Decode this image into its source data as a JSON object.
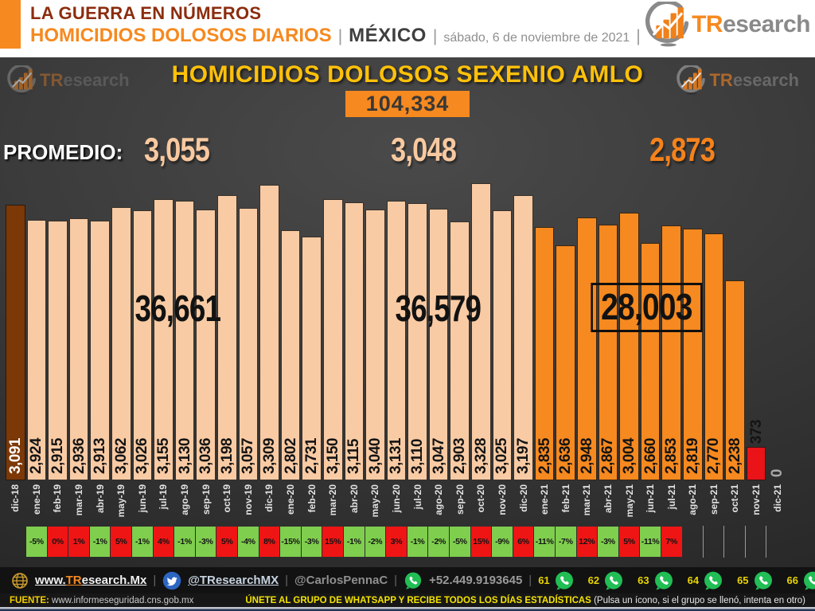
{
  "header": {
    "kicker": "LA GUERRA EN NÚMEROS",
    "subtitle": "HOMICIDIOS DOLOSOS DIARIOS",
    "sep": "|",
    "region": "MÉXICO",
    "date": "sábado, 6 de noviembre de 2021",
    "brand": {
      "tr": "TR",
      "rest": "esearch"
    }
  },
  "chart_data": {
    "type": "bar",
    "title": "HOMICIDIOS DOLOSOS SEXENIO AMLO",
    "grand_total": "104,334",
    "promedio_label": "PROMEDIO:",
    "averages": [
      "3,055",
      "3,048",
      "2,873"
    ],
    "period_totals": [
      "36,661",
      "36,579",
      "28,003"
    ],
    "categories": [
      "dic-18",
      "ene-19",
      "feb-19",
      "mar-19",
      "abr-19",
      "may-19",
      "jun-19",
      "jul-19",
      "ago-19",
      "sep-19",
      "oct-19",
      "nov-19",
      "dic-19",
      "ene-20",
      "feb-20",
      "mar-20",
      "abr-20",
      "may-20",
      "jun-20",
      "jul-20",
      "ago-20",
      "sep-20",
      "oct-20",
      "nov-20",
      "dic-20",
      "ene-21",
      "feb-21",
      "mar-21",
      "abr-21",
      "may-21",
      "jun-21",
      "jul-21",
      "ago-21",
      "sep-21",
      "oct-21",
      "nov-21",
      "dic-21"
    ],
    "values": [
      3091,
      2924,
      2915,
      2936,
      2913,
      3062,
      3026,
      3155,
      3130,
      3036,
      3198,
      3057,
      3309,
      2802,
      2731,
      3150,
      3115,
      3040,
      3131,
      3110,
      3047,
      2903,
      3328,
      3025,
      3197,
      2835,
      2636,
      2948,
      2867,
      3004,
      2660,
      2853,
      2819,
      2770,
      2238,
      373,
      0
    ],
    "pct_changes": {
      "start_index": 1,
      "labels": [
        "-5%",
        "0%",
        "1%",
        "-1%",
        "5%",
        "-1%",
        "4%",
        "-1%",
        "-3%",
        "5%",
        "-4%",
        "8%",
        "-15%",
        "-3%",
        "15%",
        "-1%",
        "-2%",
        "3%",
        "-1%",
        "-2%",
        "-5%",
        "15%",
        "-9%",
        "6%",
        "-11%",
        "-7%",
        "12%",
        "-3%",
        "5%",
        "-11%",
        "7%"
      ]
    },
    "colors": {
      "first_bar": "#7C3806",
      "term1_bars": "#F9CBA4",
      "term3_bars": "#F6891F",
      "partial_bar": "#E91318",
      "pct_up": "#EF1515",
      "pct_down": "#7FCE4E"
    },
    "ylim": [
      0,
      3400
    ],
    "legend": "none",
    "grid": "off"
  },
  "footer": {
    "site": {
      "pre": "www.",
      "tr": "TR",
      "post": "esearch.Mx"
    },
    "sep": "|",
    "twitter1": "@TResearchMX",
    "twitter2": "@CarlosPennaC",
    "phone": "+52.449.9193645",
    "whatsapp_groups": [
      "61",
      "62",
      "63",
      "64",
      "65",
      "66"
    ],
    "fuente_label": "FUENTE:",
    "fuente_url": "www.informeseguridad.cns.gob.mx",
    "cta_strong": "ÚNETE AL GRUPO DE WHATSAPP Y RECIBE TODOS LOS DÍAS ESTADÍSTICAS",
    "cta_note": "(Pulsa un ícono, si el grupo se llenó, intenta en otro)"
  }
}
